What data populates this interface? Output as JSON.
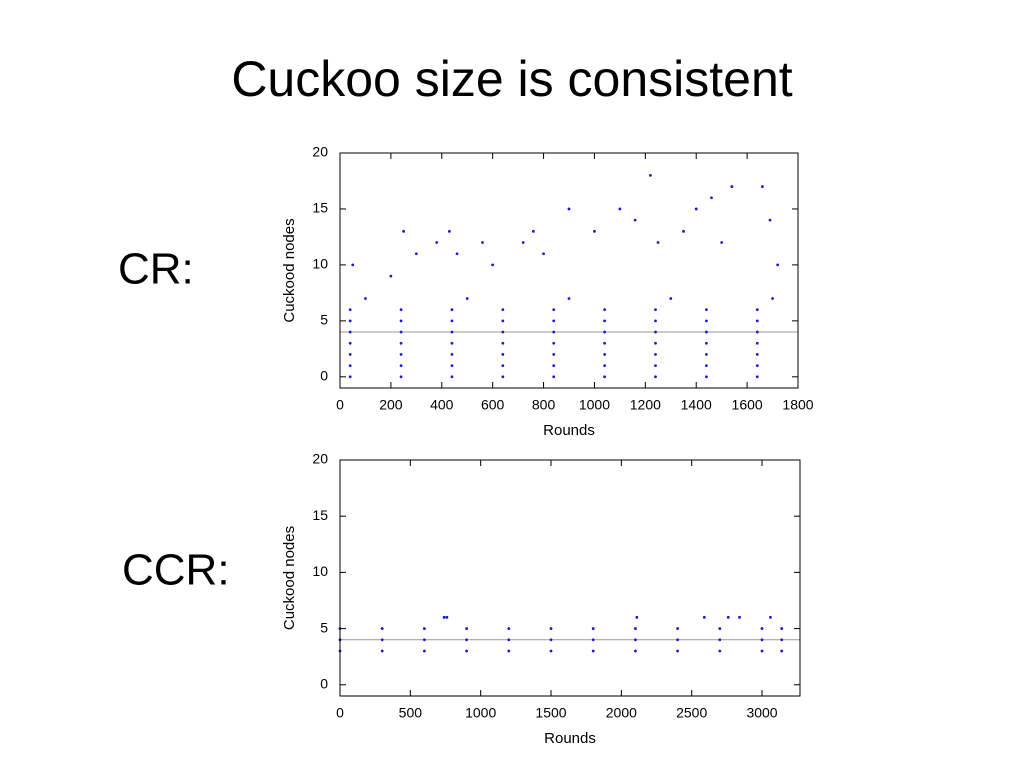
{
  "title": "Cuckoo size is consistent",
  "chart_data": [
    {
      "type": "scatter",
      "label": "CR:",
      "xlabel": "Rounds",
      "ylabel": "Cuckood nodes",
      "xlim": [
        0,
        1800
      ],
      "ylim": [
        -1,
        20
      ],
      "xticks": [
        0,
        200,
        400,
        600,
        800,
        1000,
        1200,
        1400,
        1600,
        1800
      ],
      "yticks": [
        0,
        5,
        10,
        15,
        20
      ],
      "color": "#1a1ad0",
      "reference_line": 4,
      "reference_color": "#999999",
      "x": [
        40,
        240,
        440,
        640,
        840,
        1040,
        1240,
        1440,
        1640,
        40,
        240,
        440,
        640,
        840,
        1040,
        1240,
        1440,
        1640,
        40,
        240,
        440,
        640,
        840,
        1040,
        1240,
        1440,
        1640,
        40,
        240,
        440,
        640,
        840,
        1040,
        1240,
        1440,
        1640,
        40,
        240,
        440,
        640,
        840,
        1040,
        1240,
        1440,
        1640,
        40,
        240,
        440,
        640,
        840,
        1040,
        1240,
        1440,
        1640,
        40,
        240,
        440,
        640,
        840,
        1040,
        1240,
        1440,
        1640,
        100,
        500,
        900,
        1300,
        1700,
        50,
        250,
        300,
        380,
        430,
        460,
        560,
        720,
        760,
        900,
        1000,
        1100,
        1160,
        1220,
        1350,
        1400,
        1460,
        1540,
        1660,
        1690,
        1720,
        200,
        600,
        800,
        1250,
        1500
      ],
      "values": [
        0,
        0,
        0,
        0,
        0,
        0,
        0,
        0,
        0,
        1,
        1,
        1,
        1,
        1,
        1,
        1,
        1,
        1,
        2,
        2,
        2,
        2,
        2,
        2,
        2,
        2,
        2,
        3,
        3,
        3,
        3,
        3,
        3,
        3,
        3,
        3,
        4,
        4,
        4,
        4,
        4,
        4,
        4,
        4,
        4,
        5,
        5,
        5,
        5,
        5,
        5,
        5,
        5,
        5,
        6,
        6,
        6,
        6,
        6,
        6,
        6,
        6,
        6,
        7,
        7,
        7,
        7,
        7,
        10,
        13,
        11,
        12,
        13,
        11,
        12,
        12,
        13,
        15,
        13,
        15,
        14,
        18,
        13,
        15,
        16,
        17,
        17,
        14,
        10,
        9,
        10,
        11,
        12,
        12
      ]
    },
    {
      "type": "scatter",
      "label": "CCR:",
      "xlabel": "Rounds",
      "ylabel": "Cuckood nodes",
      "xlim": [
        0,
        3270
      ],
      "ylim": [
        -1,
        20
      ],
      "xticks": [
        0,
        500,
        1000,
        1500,
        2000,
        2500,
        3000
      ],
      "yticks": [
        0,
        5,
        10,
        15,
        20
      ],
      "color": "#1a1ad0",
      "reference_line": 4,
      "reference_color": "#999999",
      "x": [
        0,
        300,
        600,
        900,
        1200,
        1500,
        1800,
        2100,
        2400,
        2700,
        3000,
        3140,
        0,
        300,
        600,
        900,
        1200,
        1500,
        1800,
        2100,
        2400,
        2700,
        3000,
        3140,
        0,
        300,
        600,
        900,
        1200,
        1500,
        1800,
        2100,
        2400,
        2700,
        3000,
        3140,
        740,
        760,
        2110,
        2590,
        2760,
        2840,
        3060
      ],
      "values": [
        3,
        3,
        3,
        3,
        3,
        3,
        3,
        3,
        3,
        3,
        3,
        3,
        4,
        4,
        4,
        4,
        4,
        4,
        4,
        4,
        4,
        4,
        4,
        4,
        5,
        5,
        5,
        5,
        5,
        5,
        5,
        5,
        5,
        5,
        5,
        5,
        6,
        6,
        6,
        6,
        6,
        6,
        6
      ]
    }
  ]
}
